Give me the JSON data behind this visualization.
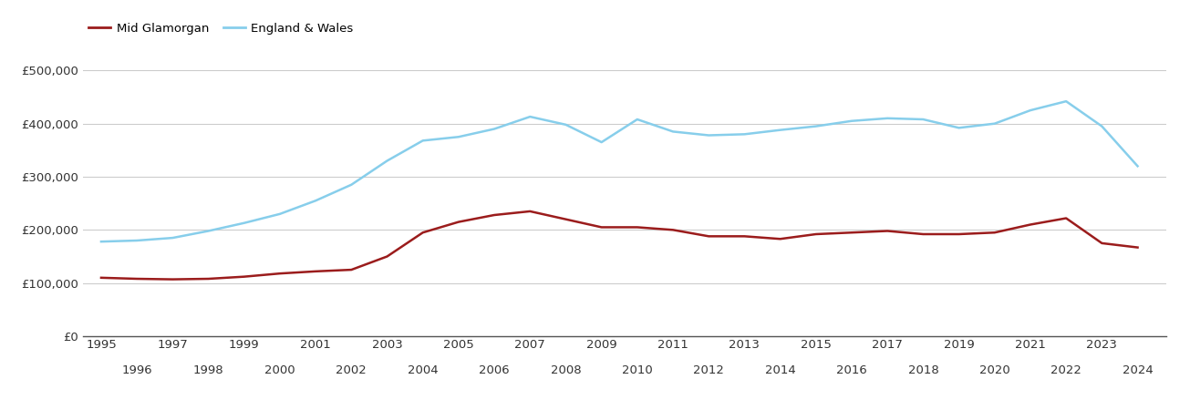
{
  "years": [
    1995,
    1996,
    1997,
    1998,
    1999,
    2000,
    2001,
    2002,
    2003,
    2004,
    2005,
    2006,
    2007,
    2008,
    2009,
    2010,
    2011,
    2012,
    2013,
    2014,
    2015,
    2016,
    2017,
    2018,
    2019,
    2020,
    2021,
    2022,
    2023,
    2024
  ],
  "mid_glamorgan": [
    110000,
    108000,
    107000,
    108000,
    112000,
    118000,
    122000,
    125000,
    150000,
    195000,
    215000,
    228000,
    235000,
    220000,
    205000,
    205000,
    200000,
    188000,
    188000,
    183000,
    192000,
    195000,
    198000,
    192000,
    192000,
    195000,
    210000,
    222000,
    175000,
    167000
  ],
  "england_wales": [
    178000,
    180000,
    185000,
    198000,
    213000,
    230000,
    255000,
    285000,
    330000,
    368000,
    375000,
    390000,
    413000,
    398000,
    365000,
    408000,
    385000,
    378000,
    380000,
    388000,
    395000,
    405000,
    410000,
    408000,
    392000,
    400000,
    425000,
    442000,
    395000,
    320000
  ],
  "mid_glamorgan_color": "#9B1C1C",
  "england_wales_color": "#87CEEB",
  "mid_glamorgan_label": "Mid Glamorgan",
  "england_wales_label": "England & Wales",
  "yticks": [
    0,
    100000,
    200000,
    300000,
    400000,
    500000
  ],
  "ytick_labels": [
    "£0",
    "£100,000",
    "£200,000",
    "£300,000",
    "£400,000",
    "£500,000"
  ],
  "ylim": [
    0,
    540000
  ],
  "xlim": [
    1994.5,
    2024.8
  ],
  "background_color": "#ffffff",
  "grid_color": "#cccccc",
  "line_width": 1.8,
  "legend_fontsize": 9.5,
  "tick_fontsize": 9.5
}
